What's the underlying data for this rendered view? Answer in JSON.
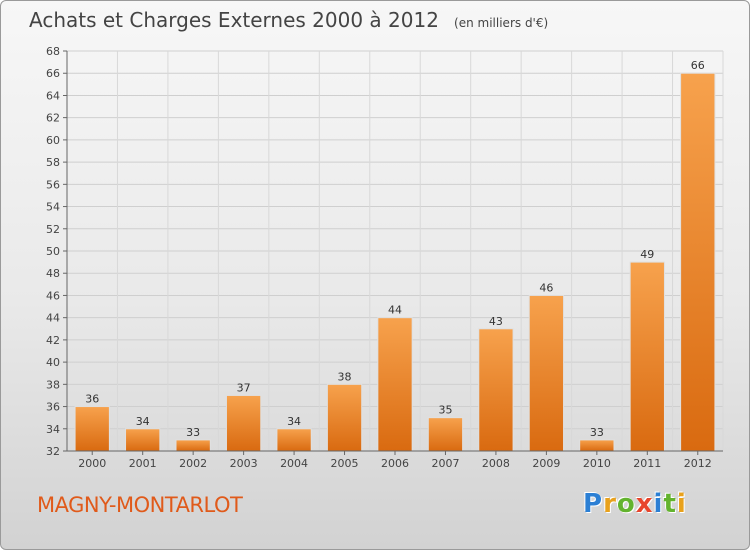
{
  "chart_data": {
    "type": "bar",
    "title": "Achats et Charges Externes 2000 à 2012",
    "unit_label": "(en milliers d'€)",
    "categories": [
      "2000",
      "2001",
      "2002",
      "2003",
      "2004",
      "2005",
      "2006",
      "2007",
      "2008",
      "2009",
      "2010",
      "2011",
      "2012"
    ],
    "values": [
      36,
      34,
      33,
      37,
      34,
      38,
      44,
      35,
      43,
      46,
      33,
      49,
      66
    ],
    "ylim": [
      32,
      68
    ],
    "ytick_step": 2,
    "grid": true,
    "bar_color": "#f28c2e"
  },
  "footer": {
    "commune": "MAGNY-MONTARLOT",
    "logo_letters": [
      {
        "ch": "P",
        "color": "#2b7fd4"
      },
      {
        "ch": "r",
        "color": "#e8a11c"
      },
      {
        "ch": "o",
        "color": "#63b32e"
      },
      {
        "ch": "x",
        "color": "#e8452c"
      },
      {
        "ch": "i",
        "color": "#2b7fd4"
      },
      {
        "ch": "t",
        "color": "#63b32e"
      },
      {
        "ch": "i",
        "color": "#e8a11c"
      }
    ]
  }
}
